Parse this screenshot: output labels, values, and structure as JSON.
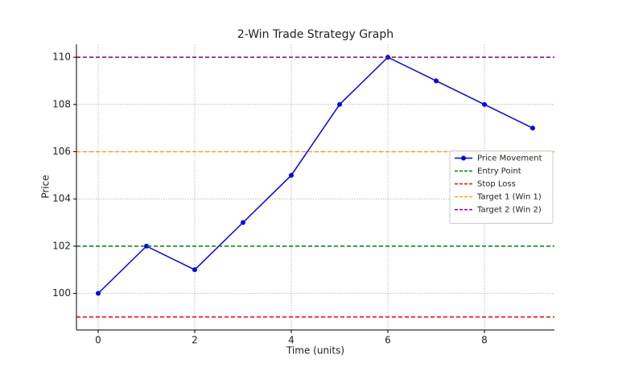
{
  "chart_data": {
    "type": "line",
    "title": "2-Win Trade Strategy Graph",
    "x_label": "Time (units)",
    "y_label": "Price",
    "x": [
      0,
      1,
      2,
      3,
      4,
      5,
      6,
      7,
      8,
      9
    ],
    "series": [
      {
        "name": "Price Movement",
        "color": "#0000ff",
        "values": [
          100,
          102,
          101,
          103,
          105,
          108,
          110,
          109,
          108,
          107
        ]
      }
    ],
    "reference_lines": [
      {
        "name": "Entry Point",
        "color": "#008000",
        "value": 102
      },
      {
        "name": "Stop Loss",
        "color": "#ff0000",
        "value": 99
      },
      {
        "name": "Target 1 (Win 1)",
        "color": "#ffa500",
        "value": 106
      },
      {
        "name": "Target 2 (Win 2)",
        "color": "#800080",
        "value": 110
      }
    ],
    "xlim": [
      -0.45,
      9.45
    ],
    "ylim": [
      98.45,
      110.55
    ],
    "xticks": [
      0,
      2,
      4,
      6,
      8
    ],
    "yticks": [
      100,
      102,
      104,
      106,
      108,
      110
    ],
    "grid": true,
    "legend": "center right"
  }
}
